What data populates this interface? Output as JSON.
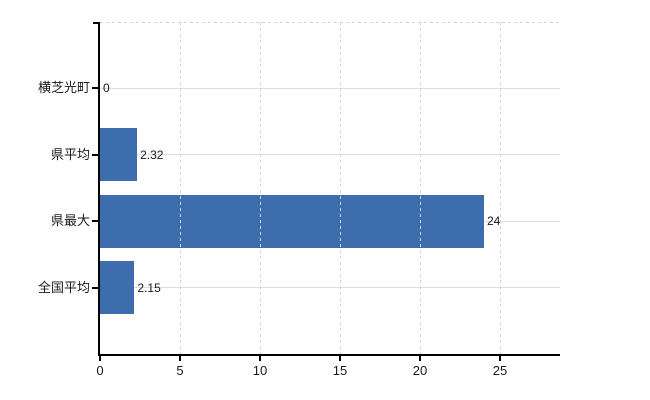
{
  "chart_data": {
    "type": "bar",
    "orientation": "horizontal",
    "title": "",
    "categories": [
      "横芝光町",
      "県平均",
      "県最大",
      "全国平均"
    ],
    "values": [
      0,
      2.32,
      24,
      2.15
    ],
    "value_labels": [
      "0",
      "2.32",
      "24",
      "2.15"
    ],
    "x_ticks": [
      0,
      5,
      10,
      15,
      20,
      25
    ],
    "xlim": [
      0,
      28.75
    ],
    "xlabel": "",
    "ylabel": "",
    "legend": "none",
    "grid": {
      "vertical": "dashed",
      "horizontal": "solid",
      "top_border": "dashed"
    },
    "colors": {
      "bar": "#3d6dad",
      "axis": "#000000",
      "vertical_grid": "#d4d4d4",
      "horizontal_grid": "#d9e0d9",
      "text": "#1a1a1a"
    }
  }
}
